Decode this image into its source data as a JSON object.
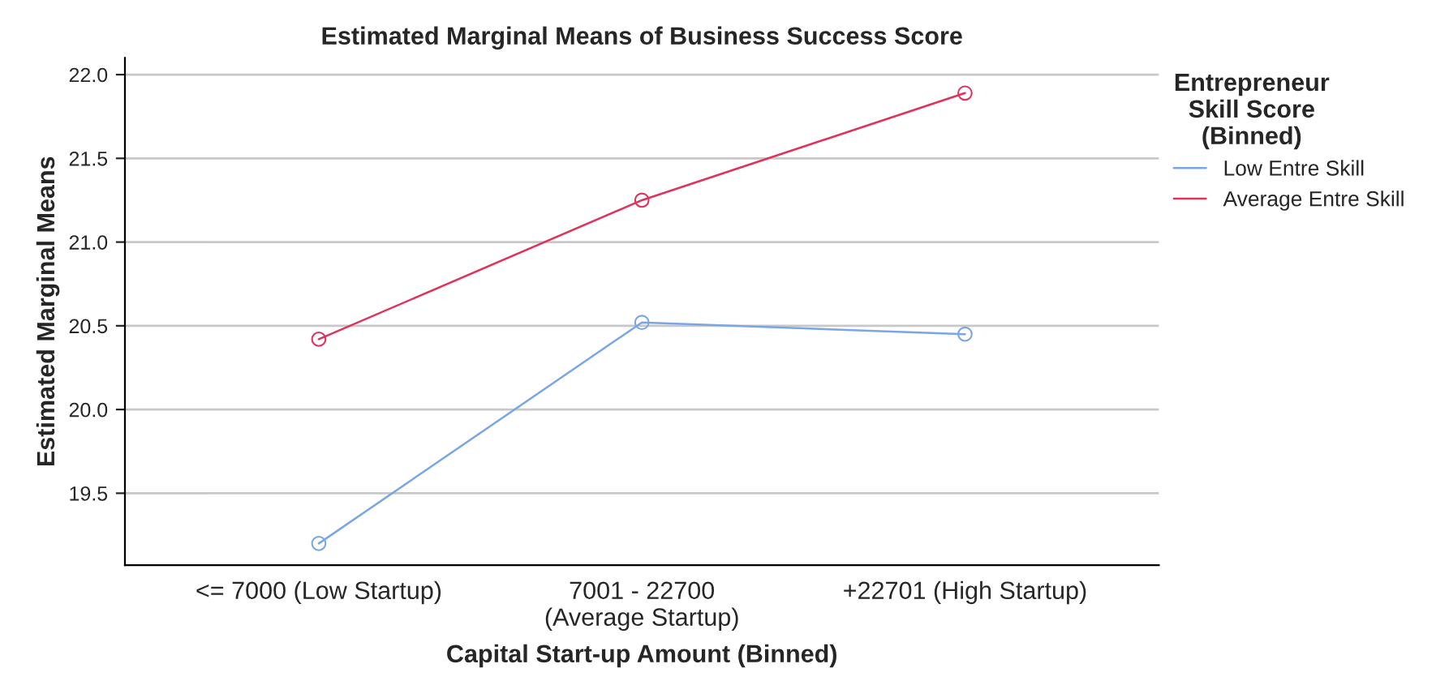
{
  "chart_data": {
    "type": "line",
    "title": "Estimated Marginal Means of Business Success Score",
    "xlabel": "Capital Start-up Amount (Binned)",
    "ylabel": "Estimated Marginal Means",
    "legend_title": "Entrepreneur\nSkill Score\n(Binned)",
    "categories": [
      "<= 7000 (Low Startup)",
      "7001 - 22700\n(Average Startup)",
      "+22701 (High Startup)"
    ],
    "series": [
      {
        "name": "Low Entre Skill",
        "color": "#7aa6e6",
        "values": [
          19.2,
          20.52,
          20.45
        ]
      },
      {
        "name": "Average Entre Skill",
        "color": "#e0325a",
        "values": [
          20.42,
          21.25,
          21.89
        ]
      }
    ],
    "ylim": [
      19.07,
      22.1
    ],
    "yticks": [
      19.5,
      {
        "value": 20,
        "label": "20.0"
      },
      20.5,
      {
        "value": 21,
        "label": "21.0"
      },
      21.5,
      {
        "value": 22,
        "label": "22.0"
      }
    ],
    "grid": "y",
    "legend": "top right",
    "marker": "circle",
    "line_style": "solid"
  }
}
